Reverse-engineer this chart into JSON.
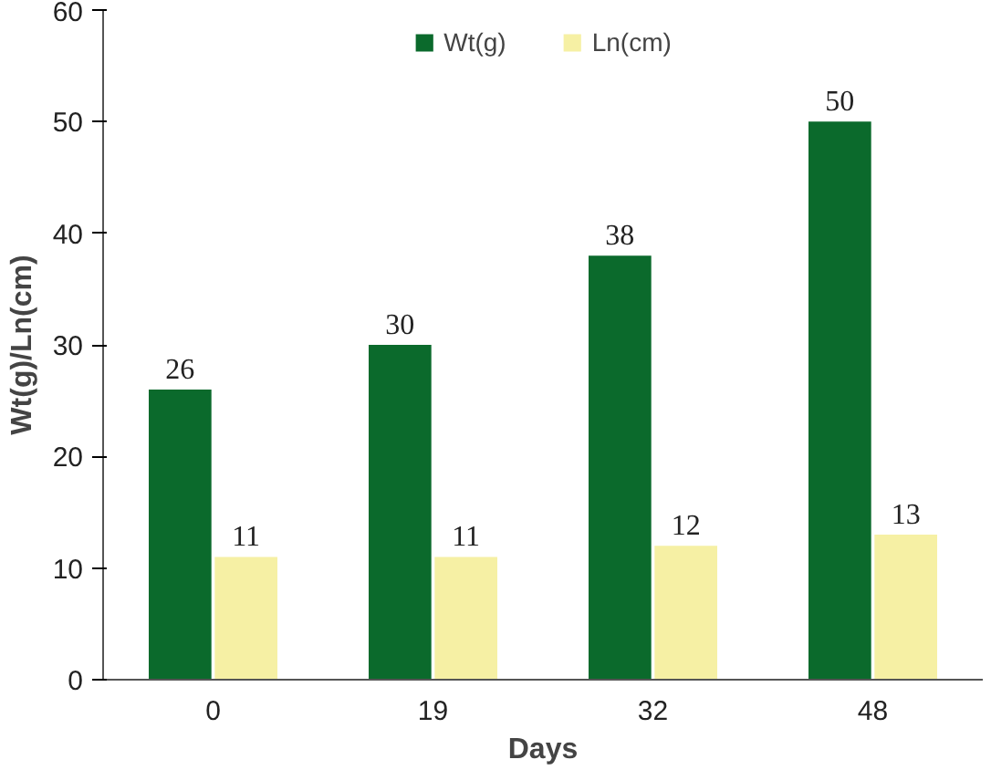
{
  "chart_data": {
    "type": "bar",
    "xlabel": "Days",
    "ylabel": "Wt(g)/Ln(cm)",
    "categories": [
      "0",
      "19",
      "32",
      "48"
    ],
    "series": [
      {
        "name": "Wt(g)",
        "color": "#0b6a2c",
        "values": [
          26,
          30,
          38,
          50
        ]
      },
      {
        "name": "Ln(cm)",
        "color": "#f6f0a4",
        "values": [
          11,
          11,
          12,
          13
        ]
      }
    ],
    "ylim": [
      0,
      60
    ],
    "yticks": [
      0,
      10,
      20,
      30,
      40,
      50,
      60
    ],
    "grid": false,
    "legend": "top",
    "data_labels": true
  }
}
